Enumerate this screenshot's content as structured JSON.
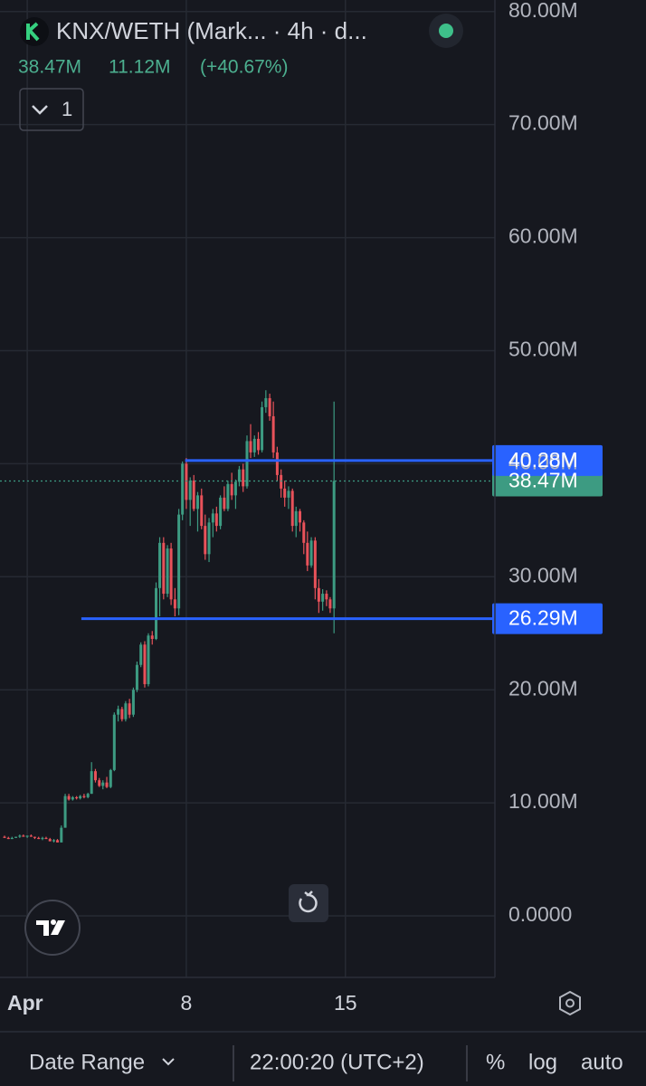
{
  "chart_data": {
    "type": "candlestick",
    "title": "KNX/WETH (Mark... · 4h · d...",
    "stats": [
      "38.47M",
      "11.12M",
      "(+40.67%)"
    ],
    "pane_button": "1",
    "up_color": "#3d9b82",
    "down_color": "#e8525a",
    "grid": true,
    "xlim": [
      0,
      21.5
    ],
    "xticks": [
      {
        "value": 1,
        "label": "Apr"
      },
      8,
      15
    ],
    "ylim": [
      -5.28,
      81.02
    ],
    "yticks": [
      {
        "value": 0,
        "label": "0.0000"
      },
      {
        "value": 10,
        "label": "10.00M"
      },
      {
        "value": 20,
        "label": "20.00M"
      },
      {
        "value": 30,
        "label": "30.00M"
      },
      {
        "value": 40,
        "label": "40.00M"
      },
      {
        "value": 50,
        "label": "50.00M"
      },
      {
        "value": 60,
        "label": "60.00M"
      },
      {
        "value": 70,
        "label": "70.00M"
      },
      {
        "value": 80,
        "label": "80.00M"
      }
    ],
    "x": [
      0,
      0.17,
      0.33,
      0.5,
      0.67,
      0.83,
      1,
      1.17,
      1.33,
      1.5,
      1.67,
      1.83,
      2,
      2.17,
      2.33,
      2.5,
      2.67,
      2.83,
      3,
      3.17,
      3.33,
      3.5,
      3.67,
      3.83,
      4,
      4.17,
      4.33,
      4.5,
      4.67,
      4.83,
      5,
      5.17,
      5.33,
      5.5,
      5.67,
      5.83,
      6,
      6.17,
      6.33,
      6.5,
      6.67,
      6.83,
      7,
      7.17,
      7.33,
      7.5,
      7.67,
      7.83,
      8,
      8.17,
      8.33,
      8.5,
      8.67,
      8.83,
      9,
      9.17,
      9.33,
      9.5,
      9.67,
      9.83,
      10,
      10.17,
      10.33,
      10.5,
      10.67,
      10.83,
      11,
      11.17,
      11.33,
      11.5,
      11.67,
      11.83,
      12,
      12.17,
      12.33,
      12.5,
      12.67,
      12.83,
      13,
      13.17,
      13.33,
      13.5,
      13.67,
      13.83,
      14,
      14.17,
      14.33,
      14.5
    ],
    "open": [
      7.0,
      6.9,
      6.8,
      6.9,
      7.0,
      7.1,
      7.0,
      7.1,
      7.0,
      6.9,
      6.8,
      6.9,
      6.8,
      6.6,
      6.7,
      6.5,
      7.8,
      10.6,
      10.3,
      10.5,
      10.4,
      10.6,
      10.5,
      10.8,
      12.8,
      12.0,
      11.5,
      11.8,
      11.4,
      12.9,
      17.8,
      18.3,
      17.4,
      18.8,
      17.8,
      20.0,
      22.2,
      24.0,
      20.5,
      24.8,
      24.5,
      29.0,
      33.0,
      28.5,
      32.5,
      28.0,
      27.2,
      35.5,
      40.0,
      36.8,
      38.5,
      36.0,
      37.2,
      34.5,
      32.0,
      34.8,
      35.6,
      34.5,
      37.0,
      36.0,
      38.2,
      37.2,
      38.4,
      39.5,
      38.0,
      42.0,
      41.0,
      42.2,
      41.2,
      45.0,
      45.8,
      44.2,
      41.0,
      39.0,
      37.8,
      37.0,
      37.6,
      34.5,
      35.8,
      34.8,
      33.0,
      31.0,
      33.2,
      29.0,
      27.8,
      28.5,
      28.0,
      27.2
    ],
    "high": [
      7.1,
      7.0,
      7.0,
      7.0,
      7.2,
      7.2,
      7.1,
      7.2,
      7.0,
      7.0,
      7.0,
      7.0,
      6.9,
      6.8,
      6.8,
      8.0,
      10.8,
      10.8,
      10.6,
      10.6,
      10.7,
      10.8,
      10.9,
      13.6,
      13.0,
      12.2,
      12.0,
      12.3,
      13.0,
      18.0,
      18.6,
      18.5,
      19.0,
      19.2,
      20.2,
      22.5,
      24.2,
      24.3,
      25.0,
      25.2,
      29.5,
      33.5,
      33.5,
      32.8,
      33.0,
      29.0,
      36.0,
      40.2,
      40.5,
      38.8,
      39.0,
      37.5,
      37.8,
      35.5,
      35.2,
      36.0,
      36.2,
      37.2,
      38.0,
      38.5,
      39.2,
      38.6,
      39.8,
      40.0,
      42.5,
      43.5,
      42.5,
      42.8,
      45.5,
      46.5,
      46.2,
      45.5,
      41.5,
      39.5,
      38.5,
      38.0,
      37.8,
      36.2,
      36.0,
      35.0,
      34.0,
      33.5,
      33.5,
      29.8,
      28.9,
      28.8,
      28.2,
      45.5
    ],
    "low": [
      6.9,
      6.8,
      6.8,
      6.9,
      6.9,
      7.0,
      6.9,
      7.0,
      6.8,
      6.8,
      6.7,
      6.8,
      6.6,
      6.5,
      6.5,
      6.5,
      7.8,
      10.2,
      10.2,
      10.3,
      10.3,
      10.4,
      10.4,
      10.8,
      11.8,
      11.4,
      11.2,
      11.3,
      11.3,
      12.8,
      17.2,
      17.2,
      17.2,
      17.5,
      17.6,
      19.8,
      22.0,
      20.2,
      20.3,
      24.0,
      24.4,
      26.5,
      28.0,
      28.2,
      27.5,
      26.5,
      26.6,
      35.0,
      36.0,
      34.5,
      35.8,
      34.0,
      34.2,
      31.5,
      31.3,
      33.5,
      34.0,
      34.2,
      35.8,
      35.8,
      36.8,
      36.0,
      38.0,
      37.5,
      37.8,
      40.5,
      40.6,
      40.8,
      41.0,
      44.5,
      43.8,
      40.5,
      38.5,
      37.0,
      36.2,
      36.0,
      34.0,
      33.5,
      34.0,
      32.0,
      30.5,
      30.8,
      28.0,
      26.8,
      27.0,
      27.4,
      26.8,
      25.0
    ],
    "close": [
      6.9,
      6.8,
      6.9,
      7.0,
      7.1,
      7.0,
      7.1,
      7.0,
      6.9,
      6.8,
      6.9,
      6.8,
      6.6,
      6.7,
      6.5,
      7.8,
      10.6,
      10.3,
      10.5,
      10.4,
      10.6,
      10.5,
      10.8,
      12.8,
      12.0,
      11.5,
      11.8,
      11.4,
      12.9,
      17.8,
      18.3,
      17.4,
      18.8,
      17.8,
      20.0,
      22.2,
      24.0,
      20.5,
      24.8,
      24.5,
      29.0,
      33.0,
      28.5,
      32.5,
      28.0,
      27.2,
      35.5,
      40.0,
      36.8,
      38.5,
      36.0,
      37.2,
      34.5,
      32.0,
      34.8,
      35.6,
      34.5,
      37.0,
      36.0,
      38.2,
      37.2,
      38.4,
      39.5,
      38.0,
      42.0,
      41.0,
      42.2,
      41.2,
      45.0,
      45.8,
      44.2,
      41.0,
      39.0,
      37.8,
      37.0,
      37.6,
      34.5,
      35.8,
      34.8,
      33.0,
      31.0,
      33.2,
      29.0,
      27.8,
      28.5,
      28.0,
      27.2,
      38.47
    ],
    "last_price": {
      "value": 38.47,
      "label": "38.47M",
      "color": "#3d9b82"
    },
    "horizontal_lines": [
      {
        "value": 40.28,
        "label": "40.28M",
        "x_start": 7.95,
        "color": "#2962ff"
      },
      {
        "value": 26.29,
        "label": "26.29M",
        "x_start": 3.38,
        "color": "#2962ff"
      }
    ]
  },
  "toolbar": {
    "date_range": "Date Range",
    "time": "22:00:20 (UTC+2)",
    "percent": "%",
    "log": "log",
    "auto": "auto"
  }
}
